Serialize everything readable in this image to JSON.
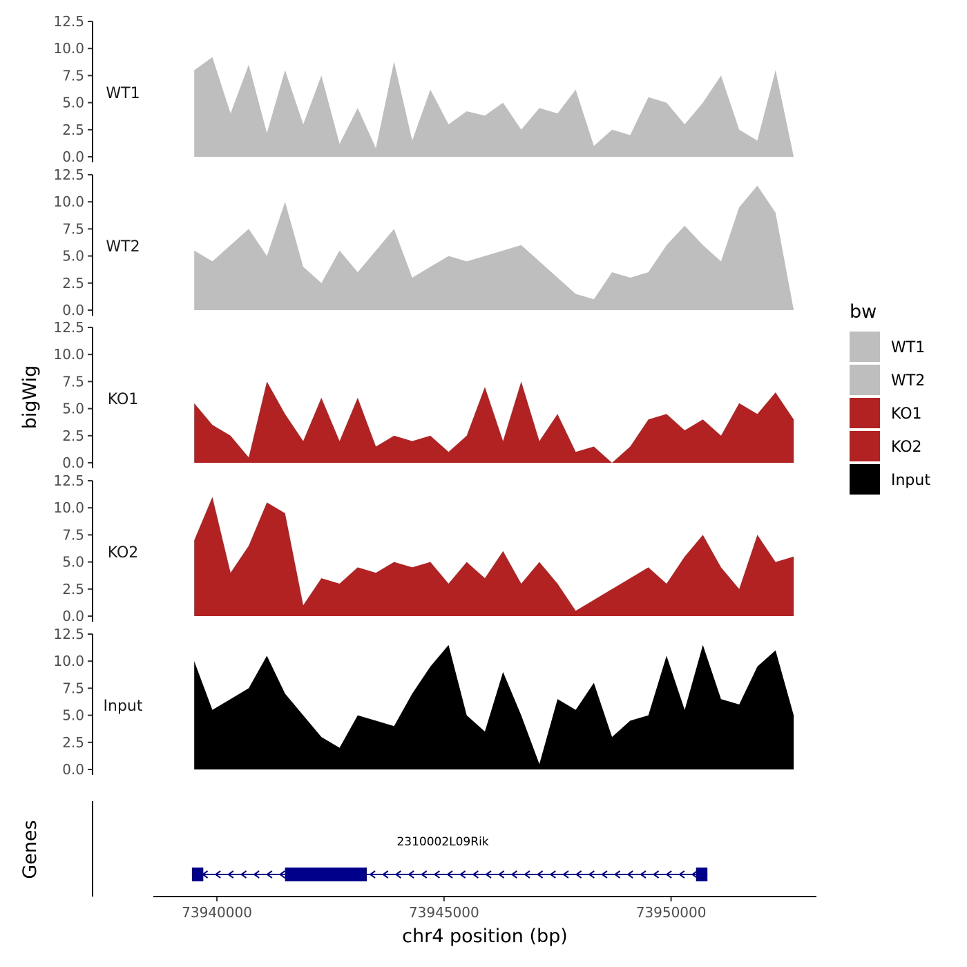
{
  "chart_data": {
    "type": "area",
    "ylabel": "bigWig",
    "gene_panel_label": "Genes",
    "xlabel": "chr4 position (bp)",
    "xlim": [
      73938600,
      73953200
    ],
    "x_ticks": [
      73940000,
      73945000,
      73950000
    ],
    "x_tick_labels": [
      "73940000",
      "73945000",
      "73950000"
    ],
    "ylim": [
      0,
      12.5
    ],
    "y_ticks": [
      0,
      2.5,
      5,
      7.5,
      10,
      12.5
    ],
    "y_tick_labels": [
      "0.0",
      "2.5",
      "5.0",
      "7.5",
      "10.0",
      "12.5"
    ],
    "x": [
      73939500,
      73939900,
      73940300,
      73940700,
      73941100,
      73941500,
      73941900,
      73942300,
      73942700,
      73943100,
      73943500,
      73943900,
      73944300,
      73944700,
      73945100,
      73945500,
      73945900,
      73946300,
      73946700,
      73947100,
      73947500,
      73947900,
      73948300,
      73948700,
      73949100,
      73949500,
      73949900,
      73950300,
      73950700,
      73951100,
      73951500,
      73951900,
      73952300,
      73952700
    ],
    "legend": {
      "title": "bw",
      "entries": [
        {
          "label": "WT1",
          "color": "#bebebe"
        },
        {
          "label": "WT2",
          "color": "#bebebe"
        },
        {
          "label": "KO1",
          "color": "#b22222"
        },
        {
          "label": "KO2",
          "color": "#b22222"
        },
        {
          "label": "Input",
          "color": "#000000"
        }
      ]
    },
    "series": [
      {
        "name": "WT1",
        "color": "#bebebe",
        "values": [
          8.0,
          9.2,
          4.0,
          8.5,
          2.2,
          8.0,
          3.0,
          7.5,
          1.2,
          4.5,
          0.8,
          8.8,
          1.5,
          6.2,
          3.0,
          4.2,
          3.8,
          5.0,
          2.5,
          4.5,
          4.0,
          6.2,
          1.0,
          2.5,
          2.0,
          5.5,
          5.0,
          3.0,
          5.0,
          7.5,
          2.5,
          1.5,
          8.0,
          0.0
        ]
      },
      {
        "name": "WT2",
        "color": "#bebebe",
        "values": [
          5.5,
          4.5,
          6.0,
          7.5,
          5.0,
          10.0,
          4.0,
          2.5,
          5.5,
          3.5,
          5.5,
          7.5,
          3.0,
          4.0,
          5.0,
          4.5,
          5.0,
          5.5,
          6.0,
          4.5,
          3.0,
          1.5,
          1.0,
          3.5,
          3.0,
          3.5,
          6.0,
          7.8,
          6.0,
          4.5,
          9.5,
          11.5,
          9.0,
          0.0
        ]
      },
      {
        "name": "KO1",
        "color": "#b22222",
        "values": [
          5.5,
          3.5,
          2.5,
          0.5,
          7.5,
          4.5,
          2.0,
          6.0,
          2.0,
          6.0,
          1.5,
          2.5,
          2.0,
          2.5,
          1.0,
          2.5,
          7.0,
          2.0,
          7.5,
          2.0,
          4.5,
          1.0,
          1.5,
          0.0,
          1.5,
          4.0,
          4.5,
          3.0,
          4.0,
          2.5,
          5.5,
          4.5,
          6.5,
          4.0
        ]
      },
      {
        "name": "KO2",
        "color": "#b22222",
        "values": [
          7.0,
          11.0,
          4.0,
          6.5,
          10.5,
          9.5,
          1.0,
          3.5,
          3.0,
          4.5,
          4.0,
          5.0,
          4.5,
          5.0,
          3.0,
          5.0,
          3.5,
          6.0,
          3.0,
          5.0,
          3.0,
          0.5,
          1.5,
          2.5,
          3.5,
          4.5,
          3.0,
          5.5,
          7.5,
          4.5,
          2.5,
          7.5,
          5.0,
          5.5
        ]
      },
      {
        "name": "Input",
        "color": "#000000",
        "values": [
          10.0,
          5.5,
          6.5,
          7.5,
          10.5,
          7.0,
          5.0,
          3.0,
          2.0,
          5.0,
          4.5,
          4.0,
          7.0,
          9.5,
          11.5,
          5.0,
          3.5,
          9.0,
          5.0,
          0.5,
          6.5,
          5.5,
          8.0,
          3.0,
          4.5,
          5.0,
          10.5,
          5.5,
          11.5,
          6.5,
          6.0,
          9.5,
          11.0,
          5.0
        ]
      }
    ],
    "gene": {
      "name": "2310002L09Rik",
      "strand": "-",
      "color": "#00008b",
      "start": 73939450,
      "end": 73950800,
      "exons": [
        [
          73939450,
          73939700
        ],
        [
          73941500,
          73943300
        ],
        [
          73950550,
          73950800
        ]
      ]
    }
  }
}
